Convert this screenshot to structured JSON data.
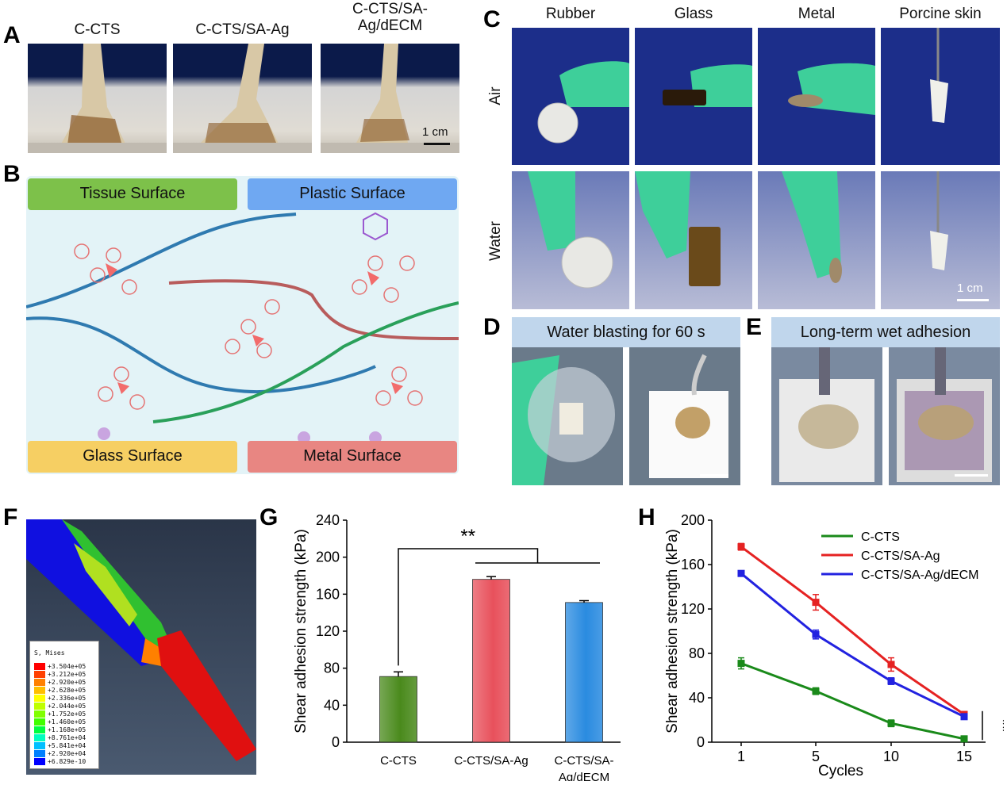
{
  "panel_labels": {
    "a": "A",
    "b": "B",
    "c": "C",
    "d": "D",
    "e": "E",
    "f": "F",
    "g": "G",
    "h": "H"
  },
  "panelA": {
    "samples": [
      "C-CTS",
      "C-CTS/SA-Ag",
      "C-CTS/SA-\nAg/dECM"
    ],
    "scale": "1 cm"
  },
  "panelB": {
    "surfaces": {
      "tissue": "Tissue Surface",
      "plastic": "Plastic Surface",
      "glass": "Glass Surface",
      "metal": "Metal Surface"
    },
    "colors": {
      "tissue": "#7dc14a",
      "plastic": "#6fa8f2",
      "glass": "#f6cf63",
      "metal": "#e88682",
      "bg": "#e3f3f7"
    }
  },
  "panelC": {
    "columns": [
      "Rubber",
      "Glass",
      "Metal",
      "Porcine skin"
    ],
    "rows": [
      "Air",
      "Water"
    ],
    "scale": "1 cm"
  },
  "panelD": {
    "title": "Water blasting for 60 s"
  },
  "panelE": {
    "title": "Long-term wet adhesion"
  },
  "panelF": {
    "legend_title": "S, Mises",
    "legend_values": [
      "+3.504e+05",
      "+3.212e+05",
      "+2.920e+05",
      "+2.628e+05",
      "+2.336e+05",
      "+2.044e+05",
      "+1.752e+05",
      "+1.460e+05",
      "+1.168e+05",
      "+8.761e+04",
      "+5.841e+04",
      "+2.920e+04",
      "+6.829e-10"
    ],
    "legend_colors": [
      "#ff0000",
      "#ff4000",
      "#ff8000",
      "#ffbf00",
      "#ffff00",
      "#bfff00",
      "#80ff00",
      "#40ff00",
      "#00ff40",
      "#00ffbf",
      "#00bfff",
      "#0080ff",
      "#0000ff"
    ]
  },
  "chart_data": [
    {
      "id": "G",
      "type": "bar",
      "categories": [
        "C-CTS",
        "C-CTS/SA-Ag",
        "C-CTS/SA-\nAg/dECM"
      ],
      "values": [
        71,
        176,
        151
      ],
      "errors": [
        5,
        3,
        2
      ],
      "colors": [
        "#4a8a1c",
        "#e8515c",
        "#2a8be0"
      ],
      "ylabel": "Shear adhesion strength (kPa)",
      "ylim": [
        0,
        240
      ],
      "yticks": [
        0,
        40,
        80,
        120,
        160,
        200,
        240
      ],
      "annotation": "**"
    },
    {
      "id": "H",
      "type": "line",
      "x": [
        1,
        5,
        10,
        15
      ],
      "xticks": [
        "1",
        "5",
        "10",
        "15"
      ],
      "series": [
        {
          "name": "C-CTS",
          "values": [
            71,
            46,
            17,
            3
          ],
          "errors": [
            5,
            3,
            3,
            1
          ],
          "color": "#1a8a1a"
        },
        {
          "name": "C-CTS/SA-Ag",
          "values": [
            176,
            126,
            70,
            25
          ],
          "errors": [
            3,
            7,
            6,
            2
          ],
          "color": "#e52222"
        },
        {
          "name": "C-CTS/SA-Ag/dECM",
          "values": [
            152,
            97,
            55,
            23
          ],
          "errors": [
            2,
            4,
            3,
            2
          ],
          "color": "#2222e0"
        }
      ],
      "xlabel": "Cycles",
      "ylabel": "Shear adhesion strength (kPa)",
      "ylim": [
        0,
        200
      ],
      "yticks": [
        0,
        40,
        80,
        120,
        160,
        200
      ],
      "annotation": "**"
    }
  ]
}
